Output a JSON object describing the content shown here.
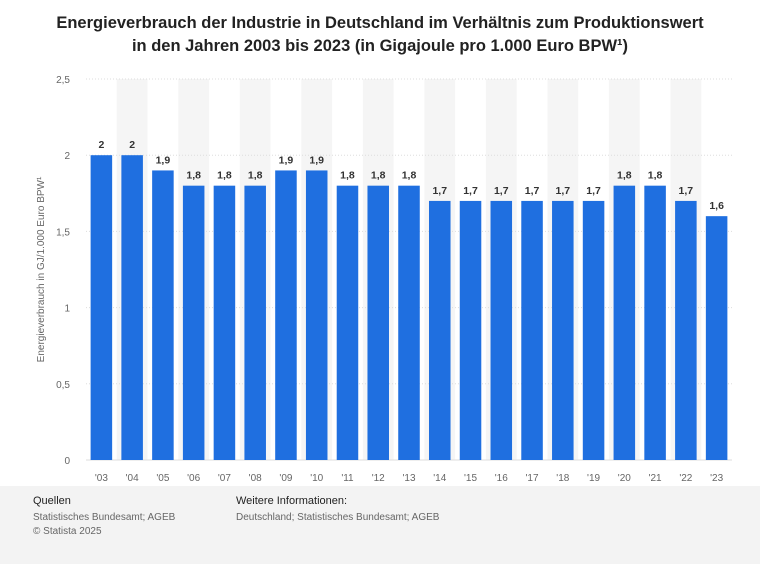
{
  "title_line1": "Energieverbrauch der Industrie in Deutschland im Verhältnis zum Produktionswert",
  "title_line2": "in den Jahren 2003 bis 2023 (in Gigajoule pro 1.000 Euro BPW¹)",
  "footer": {
    "sources_heading": "Quellen",
    "sources_text": "Statistisches Bundesamt; AGEB",
    "copyright": "© Statista 2025",
    "info_heading": "Weitere Informationen:",
    "info_text": "Deutschland; Statistisches Bundesamt; AGEB"
  },
  "chart_data": {
    "type": "bar",
    "ylabel": "Energieverbrauch in GJ/1.000 Euro BPW¹",
    "ylim": [
      0,
      2.5
    ],
    "yticks": [
      "0",
      "0,5",
      "1",
      "1,5",
      "2",
      "2,5"
    ],
    "ytick_values": [
      0,
      0.5,
      1,
      1.5,
      2,
      2.5
    ],
    "grid": true,
    "bar_color": "#1f6fe0",
    "categories": [
      "'03",
      "'04",
      "'05",
      "'06",
      "'07",
      "'08",
      "'09",
      "'10",
      "'11",
      "'12",
      "'13",
      "'14",
      "'15",
      "'16",
      "'17",
      "'18",
      "'19",
      "'20",
      "'21",
      "'22",
      "'23"
    ],
    "values": [
      2,
      2,
      1.9,
      1.8,
      1.8,
      1.8,
      1.9,
      1.9,
      1.8,
      1.8,
      1.8,
      1.7,
      1.7,
      1.7,
      1.7,
      1.7,
      1.7,
      1.8,
      1.8,
      1.7,
      1.6
    ],
    "data_labels": [
      "2",
      "2",
      "1,9",
      "1,8",
      "1,8",
      "1,8",
      "1,9",
      "1,9",
      "1,8",
      "1,8",
      "1,8",
      "1,7",
      "1,7",
      "1,7",
      "1,7",
      "1,7",
      "1,7",
      "1,8",
      "1,8",
      "1,7",
      "1,6"
    ]
  }
}
